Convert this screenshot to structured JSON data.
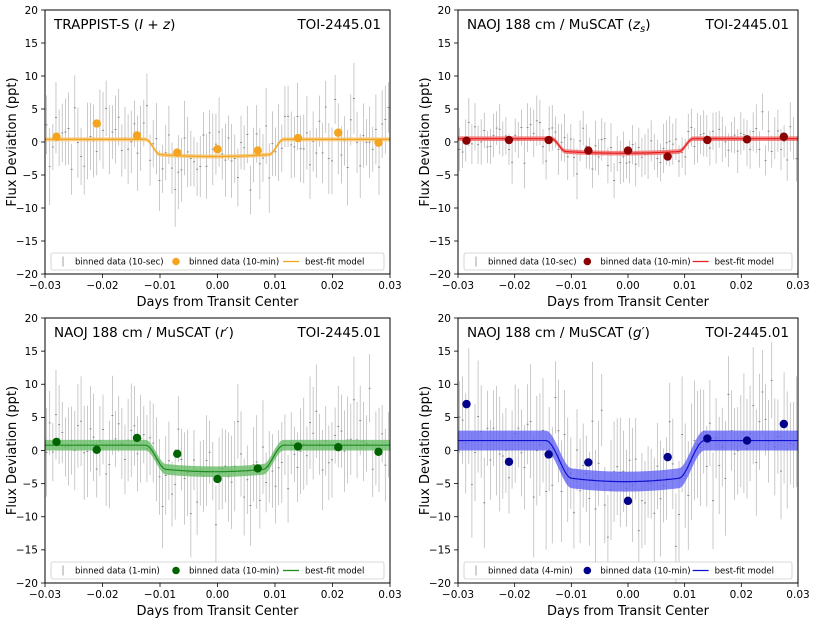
{
  "chart_data": [
    {
      "type": "scatter",
      "title": "TRAPPIST-S (I + z)",
      "title_main": "TRAPPIST-S (",
      "title_var": "I + z",
      "title_end": ")",
      "target": "TOI-2445.01",
      "xlabel": "Days from Transit Center",
      "ylabel": "Flux Deviation (ppt)",
      "xlim": [
        -0.03,
        0.03
      ],
      "ylim": [
        -20,
        20
      ],
      "xticks": [
        "−0.03",
        "−0.02",
        "−0.01",
        "0.00",
        "0.01",
        "0.02",
        "0.03"
      ],
      "yticks": [
        "−20",
        "−15",
        "−10",
        "−5",
        "0",
        "5",
        "10",
        "15",
        "20"
      ],
      "color": "#f5a41f",
      "band_color": "#f7c36a",
      "band_halfwidth": 0.3,
      "scatter_sigma": 4.5,
      "legend": [
        "binned data (10-sec)",
        "binned data (10-min)",
        "best-fit model"
      ],
      "model": {
        "baseline": 0.4,
        "depth": 2.6,
        "t1": -0.0125,
        "t2": 0.0115,
        "ingress": 0.0025
      },
      "binned": {
        "x": [
          -0.028,
          -0.021,
          -0.014,
          -0.007,
          0.0,
          0.007,
          0.014,
          0.021,
          0.028
        ],
        "y": [
          0.8,
          2.8,
          1.0,
          -1.6,
          -1.1,
          -1.3,
          0.6,
          1.4,
          -0.1
        ]
      }
    },
    {
      "type": "scatter",
      "title": "NAOJ 188 cm / MuSCAT (zs)",
      "title_main": "NAOJ 188 cm / MuSCAT (",
      "title_var": "z",
      "title_sub": "s",
      "title_end": ")",
      "target": "TOI-2445.01",
      "xlabel": "Days from Transit Center",
      "ylabel": "Flux Deviation (ppt)",
      "xlim": [
        -0.03,
        0.03
      ],
      "ylim": [
        -20,
        20
      ],
      "xticks": [
        "−0.03",
        "−0.02",
        "−0.01",
        "0.00",
        "0.01",
        "0.02",
        "0.03"
      ],
      "yticks": [
        "−20",
        "−15",
        "−10",
        "−5",
        "0",
        "5",
        "10",
        "15",
        "20"
      ],
      "color": "#8b0000",
      "line_color": "#e61e1e",
      "band_color": "#f46060",
      "band_halfwidth": 0.35,
      "scatter_sigma": 3.0,
      "legend": [
        "binned data (10-sec)",
        "binned data (10-min)",
        "best-fit model"
      ],
      "model": {
        "baseline": 0.5,
        "depth": 2.2,
        "t1": -0.0135,
        "t2": 0.0115,
        "ingress": 0.0025
      },
      "binned": {
        "x": [
          -0.0285,
          -0.021,
          -0.014,
          -0.007,
          0.0,
          0.007,
          0.014,
          0.021,
          0.0275
        ],
        "y": [
          0.2,
          0.3,
          0.3,
          -1.3,
          -1.3,
          -2.2,
          0.3,
          0.4,
          0.8
        ]
      }
    },
    {
      "type": "scatter",
      "title": "NAOJ 188 cm / MuSCAT (r′)",
      "title_main": "NAOJ 188 cm / MuSCAT (",
      "title_var": "r′",
      "title_end": ")",
      "target": "TOI-2445.01",
      "xlabel": "Days from Transit Center",
      "ylabel": "Flux Deviation (ppt)",
      "xlim": [
        -0.03,
        0.03
      ],
      "ylim": [
        -20,
        20
      ],
      "xticks": [
        "−0.03",
        "−0.02",
        "−0.01",
        "0.00",
        "0.01",
        "0.02",
        "0.03"
      ],
      "yticks": [
        "−20",
        "−15",
        "−10",
        "−5",
        "0",
        "5",
        "10",
        "15",
        "20"
      ],
      "color": "#006400",
      "line_color": "#1e8c1e",
      "band_color": "#5cb85c",
      "band_halfwidth": 0.8,
      "scatter_sigma": 5.5,
      "legend": [
        "binned data (1-min)",
        "binned data (10-min)",
        "best-fit model"
      ],
      "model": {
        "baseline": 0.8,
        "depth": 4.0,
        "t1": -0.0125,
        "t2": 0.0115,
        "ingress": 0.0035
      },
      "binned": {
        "x": [
          -0.028,
          -0.021,
          -0.014,
          -0.007,
          0.0,
          0.007,
          0.014,
          0.021,
          0.028
        ],
        "y": [
          1.3,
          0.1,
          1.9,
          -0.5,
          -4.3,
          -2.7,
          0.6,
          0.5,
          -0.2
        ]
      }
    },
    {
      "type": "scatter",
      "title": "NAOJ 188 cm / MuSCAT (g′)",
      "title_main": "NAOJ 188 cm / MuSCAT (",
      "title_var": "g′",
      "title_end": ")",
      "target": "TOI-2445.01",
      "xlabel": "Days from Transit Center",
      "ylabel": "Flux Deviation (ppt)",
      "xlim": [
        -0.03,
        0.03
      ],
      "ylim": [
        -20,
        20
      ],
      "xticks": [
        "−0.03",
        "−0.02",
        "−0.01",
        "0.00",
        "0.01",
        "0.02",
        "0.03"
      ],
      "yticks": [
        "−20",
        "−15",
        "−10",
        "−5",
        "0",
        "5",
        "10",
        "15",
        "20"
      ],
      "color": "#00008b",
      "line_color": "#1010d0",
      "band_color": "#5a5af5",
      "band_halfwidth": 1.5,
      "scatter_sigma": 7.0,
      "legend": [
        "binned data (4-min)",
        "binned data (10-min)",
        "best-fit model"
      ],
      "model": {
        "baseline": 1.5,
        "depth": 6.2,
        "t1": -0.0145,
        "t2": 0.0135,
        "ingress": 0.0045
      },
      "binned": {
        "x": [
          -0.0285,
          -0.021,
          -0.014,
          -0.007,
          0.0,
          0.007,
          0.014,
          0.021,
          0.0275
        ],
        "y": [
          7.0,
          -1.7,
          -0.6,
          -1.8,
          -7.6,
          -1.0,
          1.8,
          1.5,
          4.0
        ]
      }
    }
  ]
}
